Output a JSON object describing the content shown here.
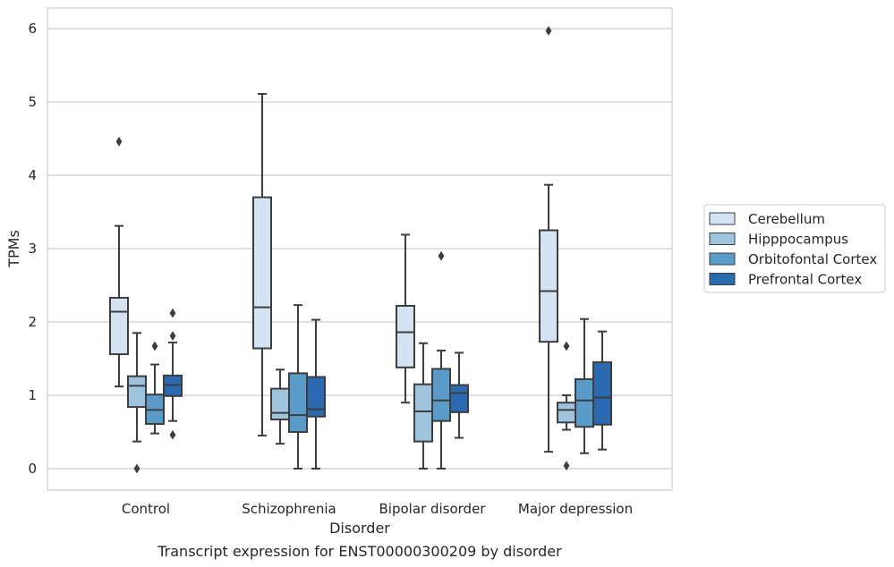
{
  "chart_data": {
    "type": "boxplot",
    "xlabel": "Disorder",
    "ylabel": "TPMs",
    "caption": "Transcript expression for ENST00000300209 by disorder",
    "ylim": [
      -0.3,
      6.3
    ],
    "yticks": [
      0,
      1,
      2,
      3,
      4,
      5,
      6
    ],
    "grid": true,
    "legend_position": "right",
    "categories": [
      "Control",
      "Schizophrenia",
      "Bipolar disorder",
      "Major depression"
    ],
    "series": [
      {
        "name": "Cerebellum",
        "color": "#d4e3f2",
        "boxes": [
          {
            "whisker_low": 1.12,
            "q1": 1.56,
            "median": 2.14,
            "q3": 2.33,
            "whisker_high": 3.31,
            "outliers": [
              4.46
            ]
          },
          {
            "whisker_low": 0.45,
            "q1": 1.64,
            "median": 2.2,
            "q3": 3.7,
            "whisker_high": 5.11,
            "outliers": []
          },
          {
            "whisker_low": 0.9,
            "q1": 1.38,
            "median": 1.86,
            "q3": 2.22,
            "whisker_high": 3.19,
            "outliers": []
          },
          {
            "whisker_low": 0.23,
            "q1": 1.73,
            "median": 2.42,
            "q3": 3.25,
            "whisker_high": 3.87,
            "outliers": [
              5.97
            ]
          }
        ]
      },
      {
        "name": "Hipppocampus",
        "color": "#9dc3dd",
        "boxes": [
          {
            "whisker_low": 0.37,
            "q1": 0.84,
            "median": 1.13,
            "q3": 1.26,
            "whisker_high": 1.85,
            "outliers": [
              0.0
            ]
          },
          {
            "whisker_low": 0.34,
            "q1": 0.67,
            "median": 0.76,
            "q3": 1.09,
            "whisker_high": 1.35,
            "outliers": []
          },
          {
            "whisker_low": 0.0,
            "q1": 0.37,
            "median": 0.78,
            "q3": 1.15,
            "whisker_high": 1.71,
            "outliers": []
          },
          {
            "whisker_low": 0.53,
            "q1": 0.63,
            "median": 0.8,
            "q3": 0.9,
            "whisker_high": 1.0,
            "outliers": [
              1.67,
              0.04
            ]
          }
        ]
      },
      {
        "name": "Orbitofontal Cortex",
        "color": "#5a9cc9",
        "boxes": [
          {
            "whisker_low": 0.48,
            "q1": 0.61,
            "median": 0.8,
            "q3": 1.01,
            "whisker_high": 1.42,
            "outliers": [
              1.67
            ]
          },
          {
            "whisker_low": 0.0,
            "q1": 0.5,
            "median": 0.73,
            "q3": 1.3,
            "whisker_high": 2.23,
            "outliers": []
          },
          {
            "whisker_low": 0.0,
            "q1": 0.65,
            "median": 0.93,
            "q3": 1.36,
            "whisker_high": 1.61,
            "outliers": [
              2.9
            ]
          },
          {
            "whisker_low": 0.21,
            "q1": 0.57,
            "median": 0.93,
            "q3": 1.22,
            "whisker_high": 2.04,
            "outliers": []
          }
        ]
      },
      {
        "name": "Prefrontal Cortex",
        "color": "#2a6ab0",
        "boxes": [
          {
            "whisker_low": 0.65,
            "q1": 0.99,
            "median": 1.14,
            "q3": 1.27,
            "whisker_high": 1.72,
            "outliers": [
              2.12,
              1.81,
              0.46
            ]
          },
          {
            "whisker_low": 0.0,
            "q1": 0.71,
            "median": 0.81,
            "q3": 1.25,
            "whisker_high": 2.03,
            "outliers": []
          },
          {
            "whisker_low": 0.42,
            "q1": 0.77,
            "median": 1.03,
            "q3": 1.14,
            "whisker_high": 1.58,
            "outliers": []
          },
          {
            "whisker_low": 0.26,
            "q1": 0.6,
            "median": 0.97,
            "q3": 1.45,
            "whisker_high": 1.87,
            "outliers": []
          }
        ]
      }
    ]
  },
  "colors": {
    "line": "#3d3d3d",
    "grid": "#cccccc",
    "frame": "#cccccc"
  }
}
